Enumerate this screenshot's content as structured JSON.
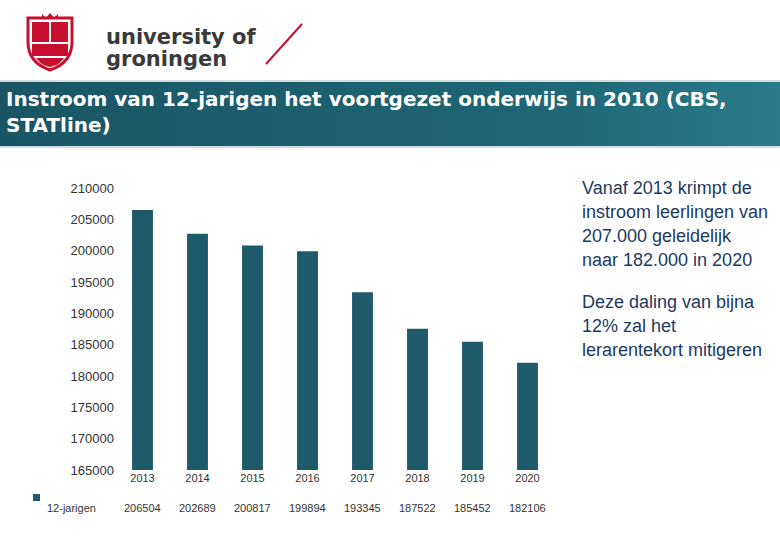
{
  "header": {
    "logo": [
      "university of",
      "groningen"
    ]
  },
  "chart_data": {
    "type": "bar",
    "title": "Instroom van 12-jarigen het voortgezet onderwijs in 2010 (CBS, STATline)",
    "categories": [
      "2013",
      "2014",
      "2015",
      "2016",
      "2017",
      "2018",
      "2019",
      "2020"
    ],
    "series": [
      {
        "name": "12-jarigen",
        "color": "#1f5a6a",
        "values": [
          206504,
          202689,
          200817,
          199894,
          193345,
          187522,
          185452,
          182106
        ]
      }
    ],
    "ylim": [
      165000,
      210000
    ],
    "yticks": [
      165000,
      170000,
      175000,
      180000,
      185000,
      190000,
      195000,
      200000,
      205000,
      210000
    ],
    "grid": false,
    "data_labels": true,
    "annotations": [
      "Vanaf 2013 krimpt de instroom leerlingen van 207.000 geleidelijk naar 182.000 in 2020",
      "Deze daling van bijna 12% zal het lerarentekort mitigeren"
    ]
  }
}
